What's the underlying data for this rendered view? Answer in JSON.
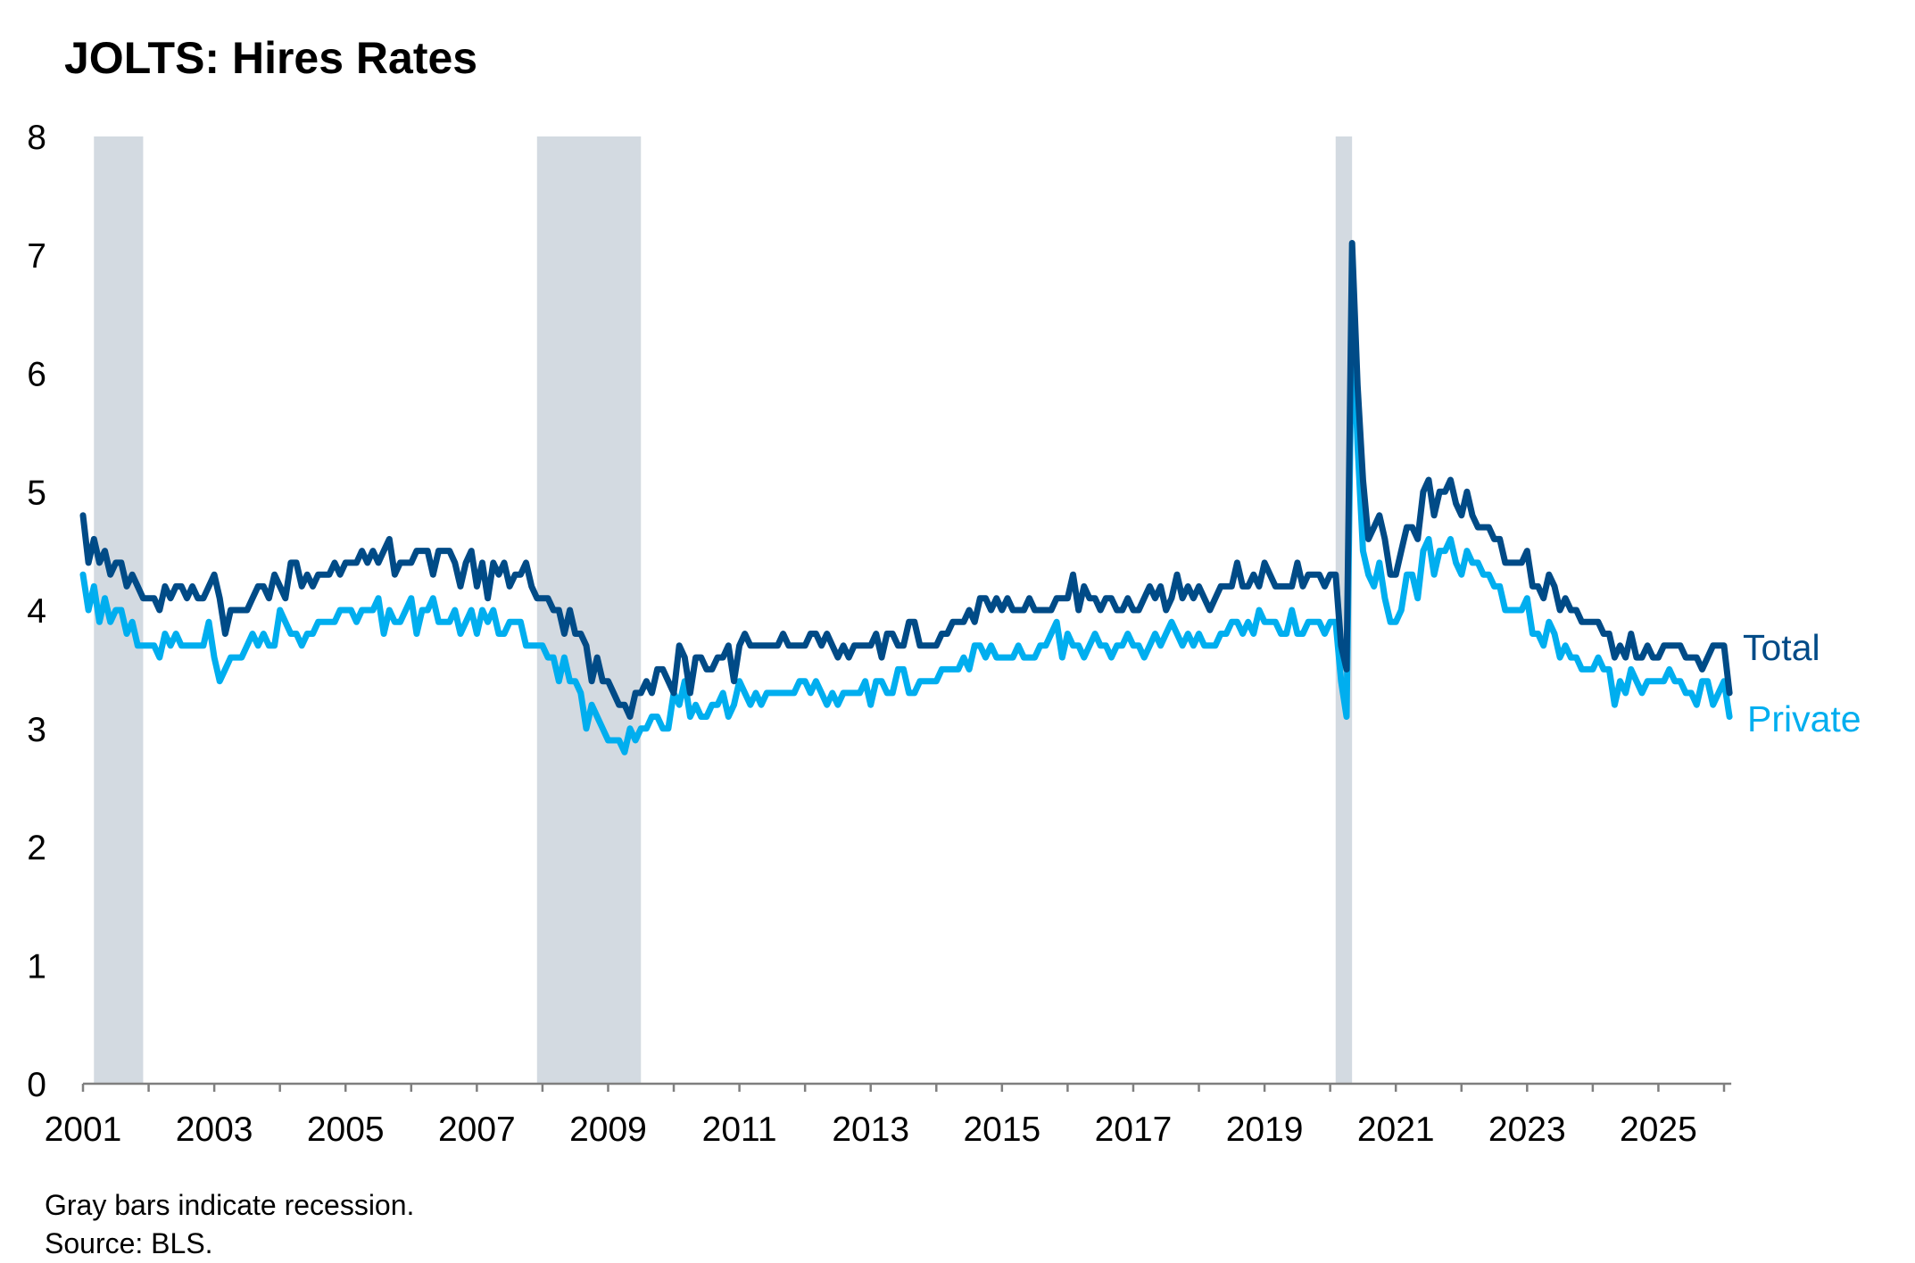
{
  "chart_data": {
    "type": "line",
    "title": "JOLTS: Hires Rates",
    "xlabel": "",
    "ylabel": "",
    "ylim": [
      0,
      8
    ],
    "yticks": [
      "0",
      "1",
      "2",
      "3",
      "4",
      "5",
      "6",
      "7",
      "8"
    ],
    "xticks": [
      "2001",
      "2003",
      "2005",
      "2007",
      "2009",
      "2011",
      "2013",
      "2015",
      "2017",
      "2019",
      "2021",
      "2023",
      "2025"
    ],
    "grid": false,
    "legend": "direct labels at line ends (right)",
    "frequency": "monthly",
    "start": "2001-01",
    "end": "2026-02",
    "recessions": [
      {
        "start": "2001-03",
        "end": "2001-11"
      },
      {
        "start": "2007-12",
        "end": "2009-06"
      },
      {
        "start": "2020-02",
        "end": "2020-04"
      }
    ],
    "recession_color": "#d3dae1",
    "series": [
      {
        "name": "Total",
        "color": "#004b87",
        "values": [
          4.8,
          4.4,
          4.6,
          4.4,
          4.5,
          4.3,
          4.4,
          4.4,
          4.2,
          4.3,
          4.2,
          4.1,
          4.1,
          4.1,
          4.0,
          4.2,
          4.1,
          4.2,
          4.2,
          4.1,
          4.2,
          4.1,
          4.1,
          4.2,
          4.3,
          4.1,
          3.8,
          4.0,
          4.0,
          4.0,
          4.0,
          4.1,
          4.2,
          4.2,
          4.1,
          4.3,
          4.2,
          4.1,
          4.4,
          4.4,
          4.2,
          4.3,
          4.2,
          4.3,
          4.3,
          4.3,
          4.4,
          4.3,
          4.4,
          4.4,
          4.4,
          4.5,
          4.4,
          4.5,
          4.4,
          4.5,
          4.6,
          4.3,
          4.4,
          4.4,
          4.4,
          4.5,
          4.5,
          4.5,
          4.3,
          4.5,
          4.5,
          4.5,
          4.4,
          4.2,
          4.4,
          4.5,
          4.2,
          4.4,
          4.1,
          4.4,
          4.3,
          4.4,
          4.2,
          4.3,
          4.3,
          4.4,
          4.2,
          4.1,
          4.1,
          4.1,
          4.0,
          4.0,
          3.8,
          4.0,
          3.8,
          3.8,
          3.7,
          3.4,
          3.6,
          3.4,
          3.4,
          3.3,
          3.2,
          3.2,
          3.1,
          3.3,
          3.3,
          3.4,
          3.3,
          3.5,
          3.5,
          3.4,
          3.3,
          3.7,
          3.6,
          3.3,
          3.6,
          3.6,
          3.5,
          3.5,
          3.6,
          3.6,
          3.7,
          3.4,
          3.7,
          3.8,
          3.7,
          3.7,
          3.7,
          3.7,
          3.7,
          3.7,
          3.8,
          3.7,
          3.7,
          3.7,
          3.7,
          3.8,
          3.8,
          3.7,
          3.8,
          3.7,
          3.6,
          3.7,
          3.6,
          3.7,
          3.7,
          3.7,
          3.7,
          3.8,
          3.6,
          3.8,
          3.8,
          3.7,
          3.7,
          3.9,
          3.9,
          3.7,
          3.7,
          3.7,
          3.7,
          3.8,
          3.8,
          3.9,
          3.9,
          3.9,
          4.0,
          3.9,
          4.1,
          4.1,
          4.0,
          4.1,
          4.0,
          4.1,
          4.0,
          4.0,
          4.0,
          4.1,
          4.0,
          4.0,
          4.0,
          4.0,
          4.1,
          4.1,
          4.1,
          4.3,
          4.0,
          4.2,
          4.1,
          4.1,
          4.0,
          4.1,
          4.1,
          4.0,
          4.0,
          4.1,
          4.0,
          4.0,
          4.1,
          4.2,
          4.1,
          4.2,
          4.0,
          4.1,
          4.3,
          4.1,
          4.2,
          4.1,
          4.2,
          4.1,
          4.0,
          4.1,
          4.2,
          4.2,
          4.2,
          4.4,
          4.2,
          4.2,
          4.3,
          4.2,
          4.4,
          4.3,
          4.2,
          4.2,
          4.2,
          4.2,
          4.4,
          4.2,
          4.3,
          4.3,
          4.3,
          4.2,
          4.3,
          4.3,
          3.7,
          3.5,
          7.1,
          5.9,
          5.1,
          4.6,
          4.7,
          4.8,
          4.6,
          4.3,
          4.3,
          4.5,
          4.7,
          4.7,
          4.6,
          5.0,
          5.1,
          4.8,
          5.0,
          5.0,
          5.1,
          4.9,
          4.8,
          5.0,
          4.8,
          4.7,
          4.7,
          4.7,
          4.6,
          4.6,
          4.4,
          4.4,
          4.4,
          4.4,
          4.5,
          4.2,
          4.2,
          4.1,
          4.3,
          4.2,
          4.0,
          4.1,
          4.0,
          4.0,
          3.9,
          3.9,
          3.9,
          3.9,
          3.8,
          3.8,
          3.6,
          3.7,
          3.6,
          3.8,
          3.6,
          3.6,
          3.7,
          3.6,
          3.6,
          3.7,
          3.7,
          3.7,
          3.7,
          3.6,
          3.6,
          3.6,
          3.5,
          3.6,
          3.7,
          3.7,
          3.7,
          3.3
        ]
      },
      {
        "name": "Private",
        "color": "#00aeef",
        "values": [
          4.3,
          4.0,
          4.2,
          3.9,
          4.1,
          3.9,
          4.0,
          4.0,
          3.8,
          3.9,
          3.7,
          3.7,
          3.7,
          3.7,
          3.6,
          3.8,
          3.7,
          3.8,
          3.7,
          3.7,
          3.7,
          3.7,
          3.7,
          3.9,
          3.6,
          3.4,
          3.5,
          3.6,
          3.6,
          3.6,
          3.7,
          3.8,
          3.7,
          3.8,
          3.7,
          3.7,
          4.0,
          3.9,
          3.8,
          3.8,
          3.7,
          3.8,
          3.8,
          3.9,
          3.9,
          3.9,
          3.9,
          4.0,
          4.0,
          4.0,
          3.9,
          4.0,
          4.0,
          4.0,
          4.1,
          3.8,
          4.0,
          3.9,
          3.9,
          4.0,
          4.1,
          3.8,
          4.0,
          4.0,
          4.1,
          3.9,
          3.9,
          3.9,
          4.0,
          3.8,
          3.9,
          4.0,
          3.8,
          4.0,
          3.9,
          4.0,
          3.8,
          3.8,
          3.9,
          3.9,
          3.9,
          3.7,
          3.7,
          3.7,
          3.7,
          3.6,
          3.6,
          3.4,
          3.6,
          3.4,
          3.4,
          3.3,
          3.0,
          3.2,
          3.1,
          3.0,
          2.9,
          2.9,
          2.9,
          2.8,
          3.0,
          2.9,
          3.0,
          3.0,
          3.1,
          3.1,
          3.0,
          3.0,
          3.3,
          3.2,
          3.4,
          3.1,
          3.2,
          3.1,
          3.1,
          3.2,
          3.2,
          3.3,
          3.1,
          3.2,
          3.4,
          3.3,
          3.2,
          3.3,
          3.2,
          3.3,
          3.3,
          3.3,
          3.3,
          3.3,
          3.3,
          3.4,
          3.4,
          3.3,
          3.4,
          3.3,
          3.2,
          3.3,
          3.2,
          3.3,
          3.3,
          3.3,
          3.3,
          3.4,
          3.2,
          3.4,
          3.4,
          3.3,
          3.3,
          3.5,
          3.5,
          3.3,
          3.3,
          3.4,
          3.4,
          3.4,
          3.4,
          3.5,
          3.5,
          3.5,
          3.5,
          3.6,
          3.5,
          3.7,
          3.7,
          3.6,
          3.7,
          3.6,
          3.6,
          3.6,
          3.6,
          3.7,
          3.6,
          3.6,
          3.6,
          3.7,
          3.7,
          3.8,
          3.9,
          3.6,
          3.8,
          3.7,
          3.7,
          3.6,
          3.7,
          3.8,
          3.7,
          3.7,
          3.6,
          3.7,
          3.7,
          3.8,
          3.7,
          3.7,
          3.6,
          3.7,
          3.8,
          3.7,
          3.8,
          3.9,
          3.8,
          3.7,
          3.8,
          3.7,
          3.8,
          3.7,
          3.7,
          3.7,
          3.8,
          3.8,
          3.9,
          3.9,
          3.8,
          3.9,
          3.8,
          4.0,
          3.9,
          3.9,
          3.9,
          3.8,
          3.8,
          4.0,
          3.8,
          3.8,
          3.9,
          3.9,
          3.9,
          3.8,
          3.9,
          3.9,
          3.4,
          3.1,
          6.6,
          5.4,
          4.5,
          4.3,
          4.2,
          4.4,
          4.1,
          3.9,
          3.9,
          4.0,
          4.3,
          4.3,
          4.1,
          4.5,
          4.6,
          4.3,
          4.5,
          4.5,
          4.6,
          4.4,
          4.3,
          4.5,
          4.4,
          4.4,
          4.3,
          4.3,
          4.2,
          4.2,
          4.0,
          4.0,
          4.0,
          4.0,
          4.1,
          3.8,
          3.8,
          3.7,
          3.9,
          3.8,
          3.6,
          3.7,
          3.6,
          3.6,
          3.5,
          3.5,
          3.5,
          3.6,
          3.5,
          3.5,
          3.2,
          3.4,
          3.3,
          3.5,
          3.4,
          3.3,
          3.4,
          3.4,
          3.4,
          3.4,
          3.5,
          3.4,
          3.4,
          3.3,
          3.3,
          3.2,
          3.4,
          3.4,
          3.2,
          3.3,
          3.4,
          3.1
        ]
      }
    ],
    "notes": [
      "Gray bars indicate recession.",
      "Source: BLS."
    ]
  }
}
